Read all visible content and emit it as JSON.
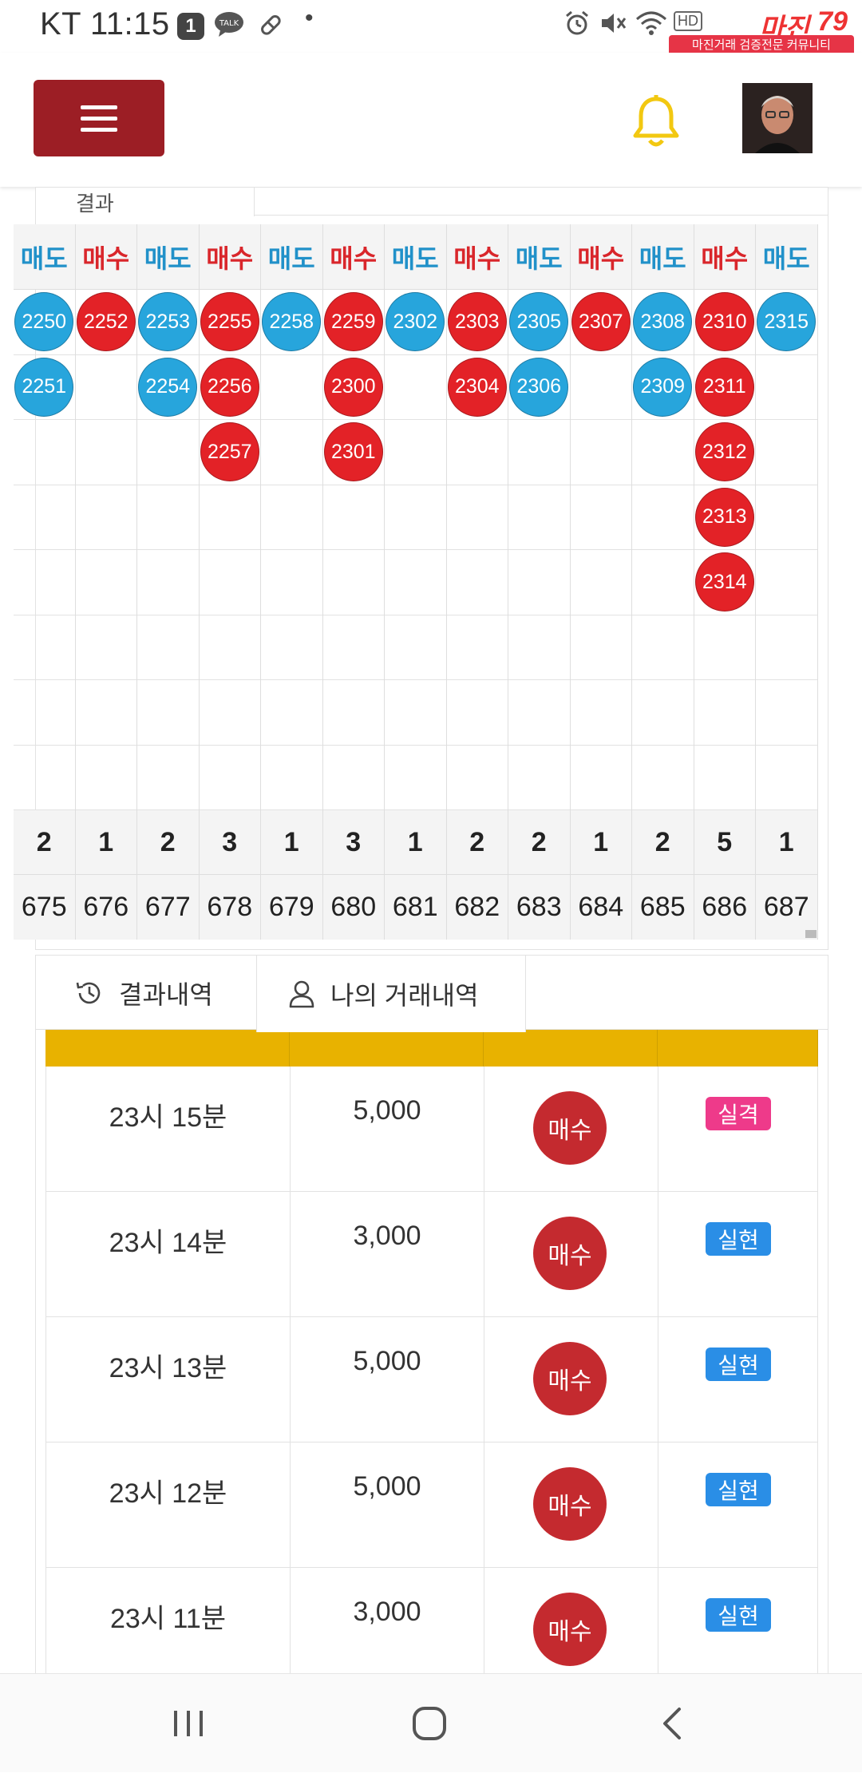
{
  "status_bar": {
    "carrier_time": "KT 11:15",
    "notif_count": "1",
    "talk_label": "TALK",
    "dot": "•",
    "hd_label": "HD",
    "watermark_logo": "마진",
    "watermark_number": "79",
    "watermark_text": "마진거래 검증전문 커뮤니티"
  },
  "header": {
    "menu_icon": "hamburger-icon",
    "bell_icon": "bell-icon",
    "bell_color": "#f2c811",
    "menu_color": "#9c1e25"
  },
  "grid": {
    "tab_stub_text": "결과",
    "buy_label": "매수",
    "sell_label": "매도",
    "buy_color": "#e32227",
    "sell_color": "#27a5dc",
    "columns": [
      {
        "type": "sell",
        "dots": [
          "2250",
          "2251"
        ],
        "count": "2",
        "round": "675"
      },
      {
        "type": "buy",
        "dots": [
          "2252"
        ],
        "count": "1",
        "round": "676"
      },
      {
        "type": "sell",
        "dots": [
          "2253",
          "2254"
        ],
        "count": "2",
        "round": "677"
      },
      {
        "type": "buy",
        "dots": [
          "2255",
          "2256",
          "2257"
        ],
        "count": "3",
        "round": "678"
      },
      {
        "type": "sell",
        "dots": [
          "2258"
        ],
        "count": "1",
        "round": "679"
      },
      {
        "type": "buy",
        "dots": [
          "2259",
          "2300",
          "2301"
        ],
        "count": "3",
        "round": "680"
      },
      {
        "type": "sell",
        "dots": [
          "2302"
        ],
        "count": "1",
        "round": "681"
      },
      {
        "type": "buy",
        "dots": [
          "2303",
          "2304"
        ],
        "count": "2",
        "round": "682"
      },
      {
        "type": "sell",
        "dots": [
          "2305",
          "2306"
        ],
        "count": "2",
        "round": "683"
      },
      {
        "type": "buy",
        "dots": [
          "2307"
        ],
        "count": "1",
        "round": "684"
      },
      {
        "type": "sell",
        "dots": [
          "2308",
          "2309"
        ],
        "count": "2",
        "round": "685"
      },
      {
        "type": "buy",
        "dots": [
          "2310",
          "2311",
          "2312",
          "2313",
          "2314"
        ],
        "count": "5",
        "round": "686"
      },
      {
        "type": "sell",
        "dots": [
          "2315"
        ],
        "count": "1",
        "round": "687"
      }
    ]
  },
  "tabs": {
    "results_label": "결과내역",
    "my_trades_label": "나의 거래내역",
    "active": "my_trades"
  },
  "table": {
    "header_color": "#e8b200",
    "rows": [
      {
        "time": "23시 15분",
        "amount": "5,000",
        "side": "매수",
        "result": "실격",
        "result_type": "fail"
      },
      {
        "time": "23시 14분",
        "amount": "3,000",
        "side": "매수",
        "result": "실현",
        "result_type": "ok"
      },
      {
        "time": "23시 13분",
        "amount": "5,000",
        "side": "매수",
        "result": "실현",
        "result_type": "ok"
      },
      {
        "time": "23시 12분",
        "amount": "5,000",
        "side": "매수",
        "result": "실현",
        "result_type": "ok"
      },
      {
        "time": "23시 11분",
        "amount": "3,000",
        "side": "매수",
        "result": "실현",
        "result_type": "ok"
      }
    ]
  },
  "navbar": {
    "recent_icon": "recent-apps-icon",
    "home_icon": "home-icon",
    "back_icon": "back-icon"
  }
}
